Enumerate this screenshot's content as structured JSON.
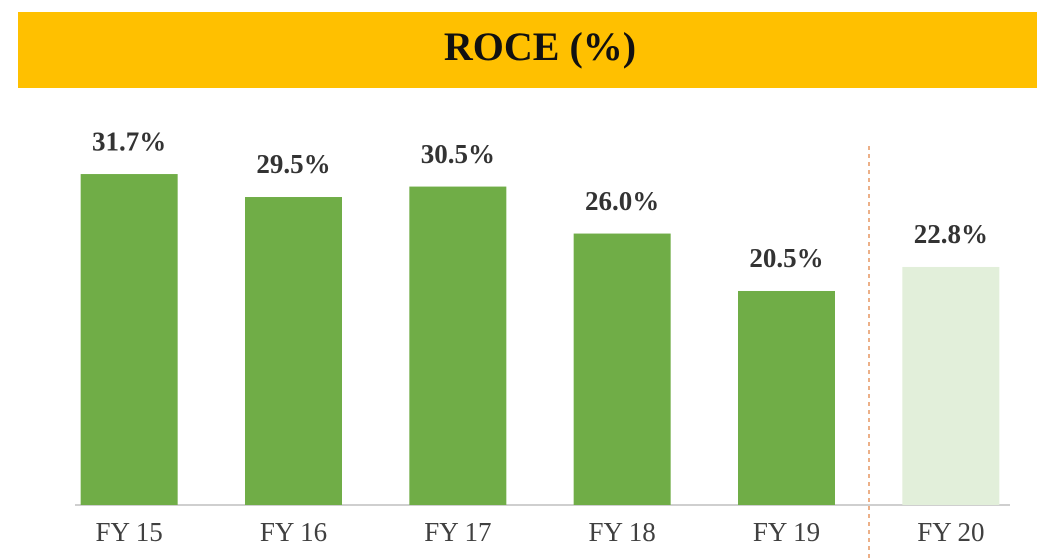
{
  "chart_data": {
    "type": "bar",
    "title": "ROCE (%)",
    "categories": [
      "FY 15",
      "FY 16",
      "FY 17",
      "FY 18",
      "FY 19",
      "FY 20"
    ],
    "values": [
      31.7,
      29.5,
      30.5,
      26.0,
      20.5,
      22.8
    ],
    "value_labels": [
      "31.7%",
      "29.5%",
      "30.5%",
      "26.0%",
      "20.5%",
      "22.8%"
    ],
    "colors": [
      "#70AD47",
      "#70AD47",
      "#70AD47",
      "#70AD47",
      "#70AD47",
      "#E2EFDA"
    ],
    "ylim": [
      0,
      40
    ]
  }
}
